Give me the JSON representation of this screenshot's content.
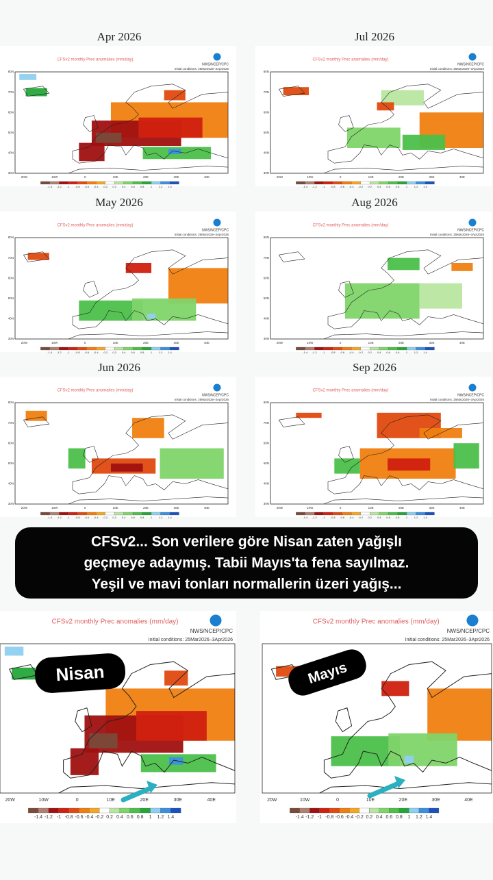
{
  "panels": [
    {
      "title": "Apr 2026"
    },
    {
      "title": "Jul 2026"
    },
    {
      "title": "May 2026"
    },
    {
      "title": "Aug 2026"
    },
    {
      "title": "Jun 2026"
    },
    {
      "title": "Sep 2026"
    }
  ],
  "map_header": {
    "title": "CFSv2 monthly Prec anomalies (mm/day)",
    "agency": "NWS/NCEP/CPC",
    "initial": "Initial conditions: 25Mar2026–3Apr2026"
  },
  "lon_labels": [
    "20W",
    "10W",
    "0",
    "10E",
    "20E",
    "30E",
    "40E"
  ],
  "lat_labels": [
    "80N",
    "70N",
    "60N",
    "50N",
    "40N",
    "30N"
  ],
  "colorbar": {
    "labels": [
      "-1.4",
      "-1.2",
      "-1",
      "-0.8",
      "-0.6",
      "-0.4",
      "-0.2",
      "0.2",
      "0.4",
      "0.6",
      "0.8",
      "1",
      "1.2",
      "1.4"
    ],
    "colors": [
      "#7a4a3a",
      "#b08070",
      "#a01010",
      "#d02010",
      "#e04a10",
      "#f07f10",
      "#f5a623",
      "#ffffff",
      "#b8e6a0",
      "#7fd46a",
      "#4cc04a",
      "#26a63a",
      "#8fd0f0",
      "#3a90e0",
      "#1a50c0"
    ]
  },
  "caption": [
    "CFSv2... Son verilere göre Nisan zaten yağışlı",
    "geçmeye adaymış. Tabii Mayıs'ta fena sayılmaz.",
    "Yeşil ve mavi tonları normallerin üzeri yağış..."
  ],
  "badges": [
    "Nisan",
    "Mayıs"
  ]
}
